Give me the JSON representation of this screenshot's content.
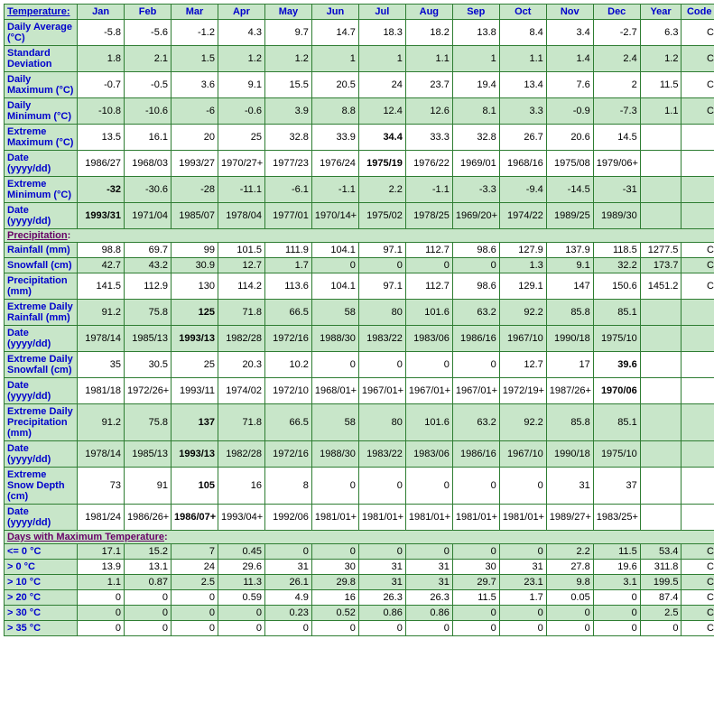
{
  "columns": [
    "Jan",
    "Feb",
    "Mar",
    "Apr",
    "May",
    "Jun",
    "Jul",
    "Aug",
    "Sep",
    "Oct",
    "Nov",
    "Dec",
    "Year",
    "Code"
  ],
  "section1": {
    "title": "Temperature",
    "link": true
  },
  "section2": {
    "title": "Precipitation",
    "link": true
  },
  "section3": {
    "title": "Days with Maximum Temperature",
    "link": true
  },
  "rows_temp": [
    {
      "label": "Daily Average (°C)",
      "bg": "white",
      "cells": [
        "-5.8",
        "-5.6",
        "-1.2",
        "4.3",
        "9.7",
        "14.7",
        "18.3",
        "18.2",
        "13.8",
        "8.4",
        "3.4",
        "-2.7",
        "6.3",
        "C"
      ],
      "bold": []
    },
    {
      "label": "Standard Deviation",
      "bg": "green",
      "cells": [
        "1.8",
        "2.1",
        "1.5",
        "1.2",
        "1.2",
        "1",
        "1",
        "1.1",
        "1",
        "1.1",
        "1.4",
        "2.4",
        "1.2",
        "C"
      ],
      "bold": []
    },
    {
      "label": "Daily Maximum (°C)",
      "bg": "white",
      "cells": [
        "-0.7",
        "-0.5",
        "3.6",
        "9.1",
        "15.5",
        "20.5",
        "24",
        "23.7",
        "19.4",
        "13.4",
        "7.6",
        "2",
        "11.5",
        "C"
      ],
      "bold": []
    },
    {
      "label": "Daily Minimum (°C)",
      "bg": "green",
      "cells": [
        "-10.8",
        "-10.6",
        "-6",
        "-0.6",
        "3.9",
        "8.8",
        "12.4",
        "12.6",
        "8.1",
        "3.3",
        "-0.9",
        "-7.3",
        "1.1",
        "C"
      ],
      "bold": []
    },
    {
      "label": "Extreme Maximum (°C)",
      "bg": "white",
      "cells": [
        "13.5",
        "16.1",
        "20",
        "25",
        "32.8",
        "33.9",
        "34.4",
        "33.3",
        "32.8",
        "26.7",
        "20.6",
        "14.5",
        "",
        ""
      ],
      "bold": [
        6
      ]
    },
    {
      "label": "Date (yyyy/dd)",
      "bg": "white",
      "cells": [
        "1986/27",
        "1968/03",
        "1993/27",
        "1970/27+",
        "1977/23",
        "1976/24",
        "1975/19",
        "1976/22",
        "1969/01",
        "1968/16",
        "1975/08",
        "1979/06+",
        "",
        ""
      ],
      "bold": [
        6
      ]
    },
    {
      "label": "Extreme Minimum (°C)",
      "bg": "green",
      "cells": [
        "-32",
        "-30.6",
        "-28",
        "-11.1",
        "-6.1",
        "-1.1",
        "2.2",
        "-1.1",
        "-3.3",
        "-9.4",
        "-14.5",
        "-31",
        "",
        ""
      ],
      "bold": [
        0
      ]
    },
    {
      "label": "Date (yyyy/dd)",
      "bg": "green",
      "cells": [
        "1993/31",
        "1971/04",
        "1985/07",
        "1978/04",
        "1977/01",
        "1970/14+",
        "1975/02",
        "1978/25",
        "1969/20+",
        "1974/22",
        "1989/25",
        "1989/30",
        "",
        ""
      ],
      "bold": [
        0
      ]
    }
  ],
  "rows_precip": [
    {
      "label": "Rainfall (mm)",
      "bg": "white",
      "cells": [
        "98.8",
        "69.7",
        "99",
        "101.5",
        "111.9",
        "104.1",
        "97.1",
        "112.7",
        "98.6",
        "127.9",
        "137.9",
        "118.5",
        "1277.5",
        "C"
      ],
      "bold": []
    },
    {
      "label": "Snowfall (cm)",
      "bg": "green",
      "cells": [
        "42.7",
        "43.2",
        "30.9",
        "12.7",
        "1.7",
        "0",
        "0",
        "0",
        "0",
        "1.3",
        "9.1",
        "32.2",
        "173.7",
        "C"
      ],
      "bold": []
    },
    {
      "label": "Precipitation (mm)",
      "bg": "white",
      "cells": [
        "141.5",
        "112.9",
        "130",
        "114.2",
        "113.6",
        "104.1",
        "97.1",
        "112.7",
        "98.6",
        "129.1",
        "147",
        "150.6",
        "1451.2",
        "C"
      ],
      "bold": []
    },
    {
      "label": "Extreme Daily Rainfall (mm)",
      "bg": "green",
      "cells": [
        "91.2",
        "75.8",
        "125",
        "71.8",
        "66.5",
        "58",
        "80",
        "101.6",
        "63.2",
        "92.2",
        "85.8",
        "85.1",
        "",
        ""
      ],
      "bold": [
        2
      ]
    },
    {
      "label": "Date (yyyy/dd)",
      "bg": "green",
      "cells": [
        "1978/14",
        "1985/13",
        "1993/13",
        "1982/28",
        "1972/16",
        "1988/30",
        "1983/22",
        "1983/06",
        "1986/16",
        "1967/10",
        "1990/18",
        "1975/10",
        "",
        ""
      ],
      "bold": [
        2
      ]
    },
    {
      "label": "Extreme Daily Snowfall (cm)",
      "bg": "white",
      "cells": [
        "35",
        "30.5",
        "25",
        "20.3",
        "10.2",
        "0",
        "0",
        "0",
        "0",
        "12.7",
        "17",
        "39.6",
        "",
        ""
      ],
      "bold": [
        11
      ]
    },
    {
      "label": "Date (yyyy/dd)",
      "bg": "white",
      "cells": [
        "1981/18",
        "1972/26+",
        "1993/11",
        "1974/02",
        "1972/10",
        "1968/01+",
        "1967/01+",
        "1967/01+",
        "1967/01+",
        "1972/19+",
        "1987/26+",
        "1970/06",
        "",
        ""
      ],
      "bold": [
        11
      ]
    },
    {
      "label": "Extreme Daily Precipitation (mm)",
      "bg": "green",
      "cells": [
        "91.2",
        "75.8",
        "137",
        "71.8",
        "66.5",
        "58",
        "80",
        "101.6",
        "63.2",
        "92.2",
        "85.8",
        "85.1",
        "",
        ""
      ],
      "bold": [
        2
      ]
    },
    {
      "label": "Date (yyyy/dd)",
      "bg": "green",
      "cells": [
        "1978/14",
        "1985/13",
        "1993/13",
        "1982/28",
        "1972/16",
        "1988/30",
        "1983/22",
        "1983/06",
        "1986/16",
        "1967/10",
        "1990/18",
        "1975/10",
        "",
        ""
      ],
      "bold": [
        2
      ]
    },
    {
      "label": "Extreme Snow Depth (cm)",
      "bg": "white",
      "cells": [
        "73",
        "91",
        "105",
        "16",
        "8",
        "0",
        "0",
        "0",
        "0",
        "0",
        "31",
        "37",
        "",
        ""
      ],
      "bold": [
        2
      ]
    },
    {
      "label": "Date (yyyy/dd)",
      "bg": "white",
      "cells": [
        "1981/24",
        "1986/26+",
        "1986/07+",
        "1993/04+",
        "1992/06",
        "1981/01+",
        "1981/01+",
        "1981/01+",
        "1981/01+",
        "1981/01+",
        "1989/27+",
        "1983/25+",
        "",
        ""
      ],
      "bold": [
        2
      ]
    }
  ],
  "rows_days": [
    {
      "label": "<= 0 °C",
      "bg": "green",
      "cells": [
        "17.1",
        "15.2",
        "7",
        "0.45",
        "0",
        "0",
        "0",
        "0",
        "0",
        "0",
        "2.2",
        "11.5",
        "53.4",
        "C"
      ],
      "bold": []
    },
    {
      "label": "> 0 °C",
      "bg": "white",
      "cells": [
        "13.9",
        "13.1",
        "24",
        "29.6",
        "31",
        "30",
        "31",
        "31",
        "30",
        "31",
        "27.8",
        "19.6",
        "311.8",
        "C"
      ],
      "bold": []
    },
    {
      "label": "> 10 °C",
      "bg": "green",
      "cells": [
        "1.1",
        "0.87",
        "2.5",
        "11.3",
        "26.1",
        "29.8",
        "31",
        "31",
        "29.7",
        "23.1",
        "9.8",
        "3.1",
        "199.5",
        "C"
      ],
      "bold": []
    },
    {
      "label": "> 20 °C",
      "bg": "white",
      "cells": [
        "0",
        "0",
        "0",
        "0.59",
        "4.9",
        "16",
        "26.3",
        "26.3",
        "11.5",
        "1.7",
        "0.05",
        "0",
        "87.4",
        "C"
      ],
      "bold": []
    },
    {
      "label": "> 30 °C",
      "bg": "green",
      "cells": [
        "0",
        "0",
        "0",
        "0",
        "0.23",
        "0.52",
        "0.86",
        "0.86",
        "0",
        "0",
        "0",
        "0",
        "2.5",
        "C"
      ],
      "bold": []
    },
    {
      "label": "> 35 °C",
      "bg": "white",
      "cells": [
        "0",
        "0",
        "0",
        "0",
        "0",
        "0",
        "0",
        "0",
        "0",
        "0",
        "0",
        "0",
        "0",
        "C"
      ],
      "bold": []
    }
  ]
}
